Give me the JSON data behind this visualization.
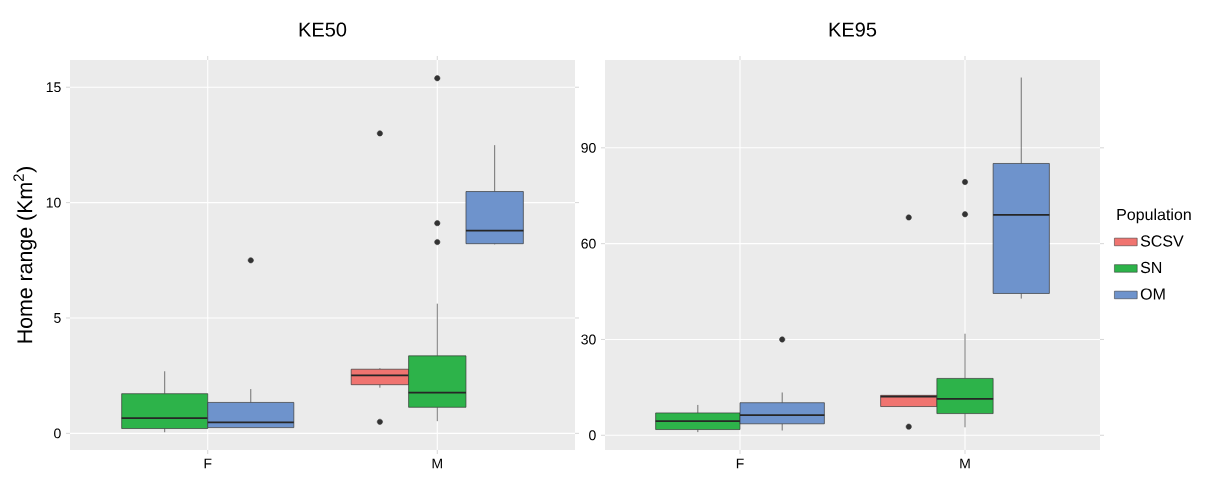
{
  "chart_data": [
    {
      "type": "box",
      "title": "KE50",
      "ylabel": "Home range (Km$^{2}$)",
      "categories": [
        "F",
        "M"
      ],
      "ylim": [
        -0.72,
        16.18
      ],
      "yticks": [
        0,
        5,
        10,
        15
      ],
      "grid": true,
      "legend": false,
      "marker": "circle",
      "series": [
        {
          "color": "#f07470",
          "boxes": [
            null,
            {
              "low": 1.98,
              "q1": 2.11,
              "median": 2.51,
              "q3": 2.78,
              "high": 2.82,
              "outliers": [
                13.0,
                0.5
              ]
            }
          ]
        },
        {
          "color": "#2db34a",
          "boxes": [
            {
              "low": 0.05,
              "q1": 0.21,
              "median": 0.66,
              "q3": 1.72,
              "high": 2.69
            },
            {
              "low": 0.53,
              "q1": 1.13,
              "median": 1.77,
              "q3": 3.36,
              "high": 5.62,
              "outliers": [
                9.11,
                8.29,
                15.39
              ]
            }
          ]
        },
        {
          "color": "#6e93cc",
          "boxes": [
            {
              "low": 0.25,
              "q1": 0.25,
              "median": 0.48,
              "q3": 1.34,
              "high": 1.92,
              "outliers": [
                7.5
              ]
            },
            {
              "low": 8.19,
              "q1": 8.22,
              "median": 8.79,
              "q3": 10.48,
              "high": 12.49
            }
          ]
        }
      ]
    },
    {
      "type": "box",
      "title": "KE95",
      "legend_title": "Population",
      "categories": [
        "F",
        "M"
      ],
      "ylim": [
        -4.6,
        117.5
      ],
      "yticks": [
        0,
        30,
        60,
        90
      ],
      "grid": true,
      "legend": "right",
      "marker": "circle",
      "series": [
        {
          "name": "SCSV",
          "color": "#f07470",
          "boxes": [
            null,
            {
              "low": 9.0,
              "q1": 9.0,
              "median": 12.1,
              "q3": 12.5,
              "high": 12.6,
              "outliers": [
                68.2,
                2.7
              ]
            }
          ]
        },
        {
          "name": "SN",
          "color": "#2db34a",
          "boxes": [
            {
              "low": 1.0,
              "q1": 1.8,
              "median": 4.4,
              "q3": 7.0,
              "high": 9.5
            },
            {
              "low": 2.5,
              "q1": 6.8,
              "median": 11.4,
              "q3": 17.8,
              "high": 31.8,
              "outliers": [
                79.3,
                69.2
              ]
            }
          ]
        },
        {
          "name": "OM",
          "color": "#6e93cc",
          "boxes": [
            {
              "low": 1.5,
              "q1": 3.6,
              "median": 6.3,
              "q3": 10.2,
              "high": 13.4,
              "outliers": [
                30.0
              ]
            },
            {
              "low": 42.8,
              "q1": 44.4,
              "median": 69.0,
              "q3": 85.1,
              "high": 112.0
            }
          ]
        }
      ]
    }
  ]
}
